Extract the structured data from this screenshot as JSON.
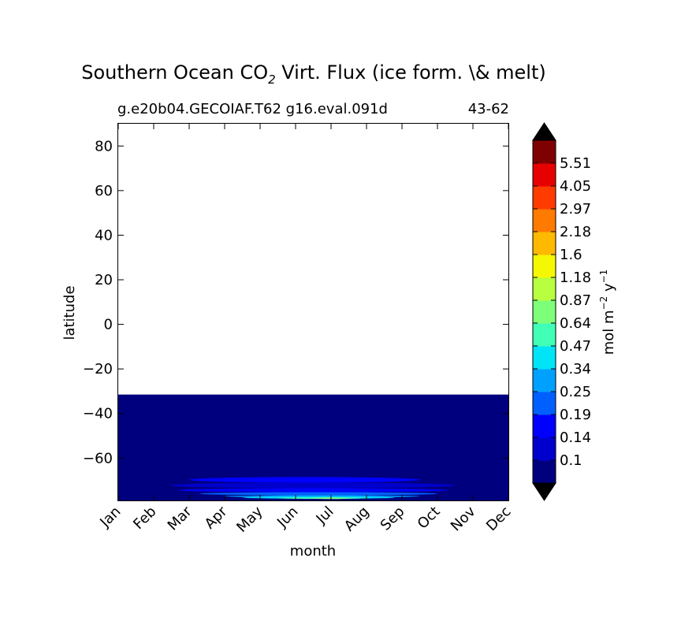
{
  "chart_data": {
    "type": "heatmap",
    "title": "Southern Ocean CO",
    "title_sub": "2",
    "title_rest": " Virt. Flux (ice form. \\& melt)",
    "subtitle_left": "g.e20b04.GECOIAF.T62 g16.eval.091d",
    "subtitle_right": "43-62",
    "xlabel": "month",
    "ylabel": "latitude",
    "x_categories": [
      "Jan",
      "Feb",
      "Mar",
      "Apr",
      "May",
      "Jun",
      "Jul",
      "Aug",
      "Sep",
      "Oct",
      "Nov",
      "Dec"
    ],
    "yticks": [
      80,
      60,
      40,
      20,
      0,
      -20,
      -40,
      -60
    ],
    "ytick_labels": [
      "80",
      "60",
      "40",
      "20",
      "0",
      "−20",
      "−40",
      "−60"
    ],
    "ylim": [
      -79,
      90
    ],
    "data_extent": {
      "lat_min": -79,
      "lat_max": -31.5
    },
    "colorbar": {
      "label_main": "mol m",
      "label_exp1": "−2",
      "label_mid": " y",
      "label_exp2": "−1",
      "levels": [
        "0.1",
        "0.14",
        "0.19",
        "0.25",
        "0.34",
        "0.47",
        "0.64",
        "0.87",
        "1.18",
        "1.6",
        "2.18",
        "2.97",
        "4.05",
        "5.51"
      ],
      "colors": [
        "#00007f",
        "#0000cd",
        "#0000ff",
        "#0060ff",
        "#00a0ff",
        "#00e4f8",
        "#40ffb7",
        "#7dff7a",
        "#b7ff40",
        "#f4f802",
        "#ffb900",
        "#ff7a00",
        "#ff3b00",
        "#e60000",
        "#7f0000"
      ],
      "extend_low_color": "#000000",
      "extend_high_color": "#000000"
    },
    "bands": [
      {
        "start": 2.0,
        "end": 8.5,
        "lat_top": -68.5,
        "lat_bottom": -71.0,
        "color": "#0000ff"
      },
      {
        "start": 1.5,
        "end": 9.5,
        "lat_top": -71.0,
        "lat_bottom": -73.5,
        "color": "#0000cd"
      },
      {
        "start": 1.7,
        "end": 9.3,
        "lat_top": -73.5,
        "lat_bottom": -75.3,
        "color": "#0000ff"
      },
      {
        "start": 2.3,
        "end": 9.0,
        "lat_top": -75.3,
        "lat_bottom": -76.7,
        "color": "#0060ff"
      },
      {
        "start": 3.0,
        "end": 8.5,
        "lat_top": -76.7,
        "lat_bottom": -77.6,
        "color": "#00a0ff"
      },
      {
        "start": 3.5,
        "end": 7.8,
        "lat_top": -77.3,
        "lat_bottom": -78.2,
        "color": "#00e4f8"
      },
      {
        "start": 4.5,
        "end": 7.0,
        "lat_top": -77.6,
        "lat_bottom": -78.3,
        "color": "#40ffb7"
      },
      {
        "start": 5.5,
        "end": 6.5,
        "lat_top": -77.8,
        "lat_bottom": -78.4,
        "color": "#7dff7a"
      }
    ]
  }
}
